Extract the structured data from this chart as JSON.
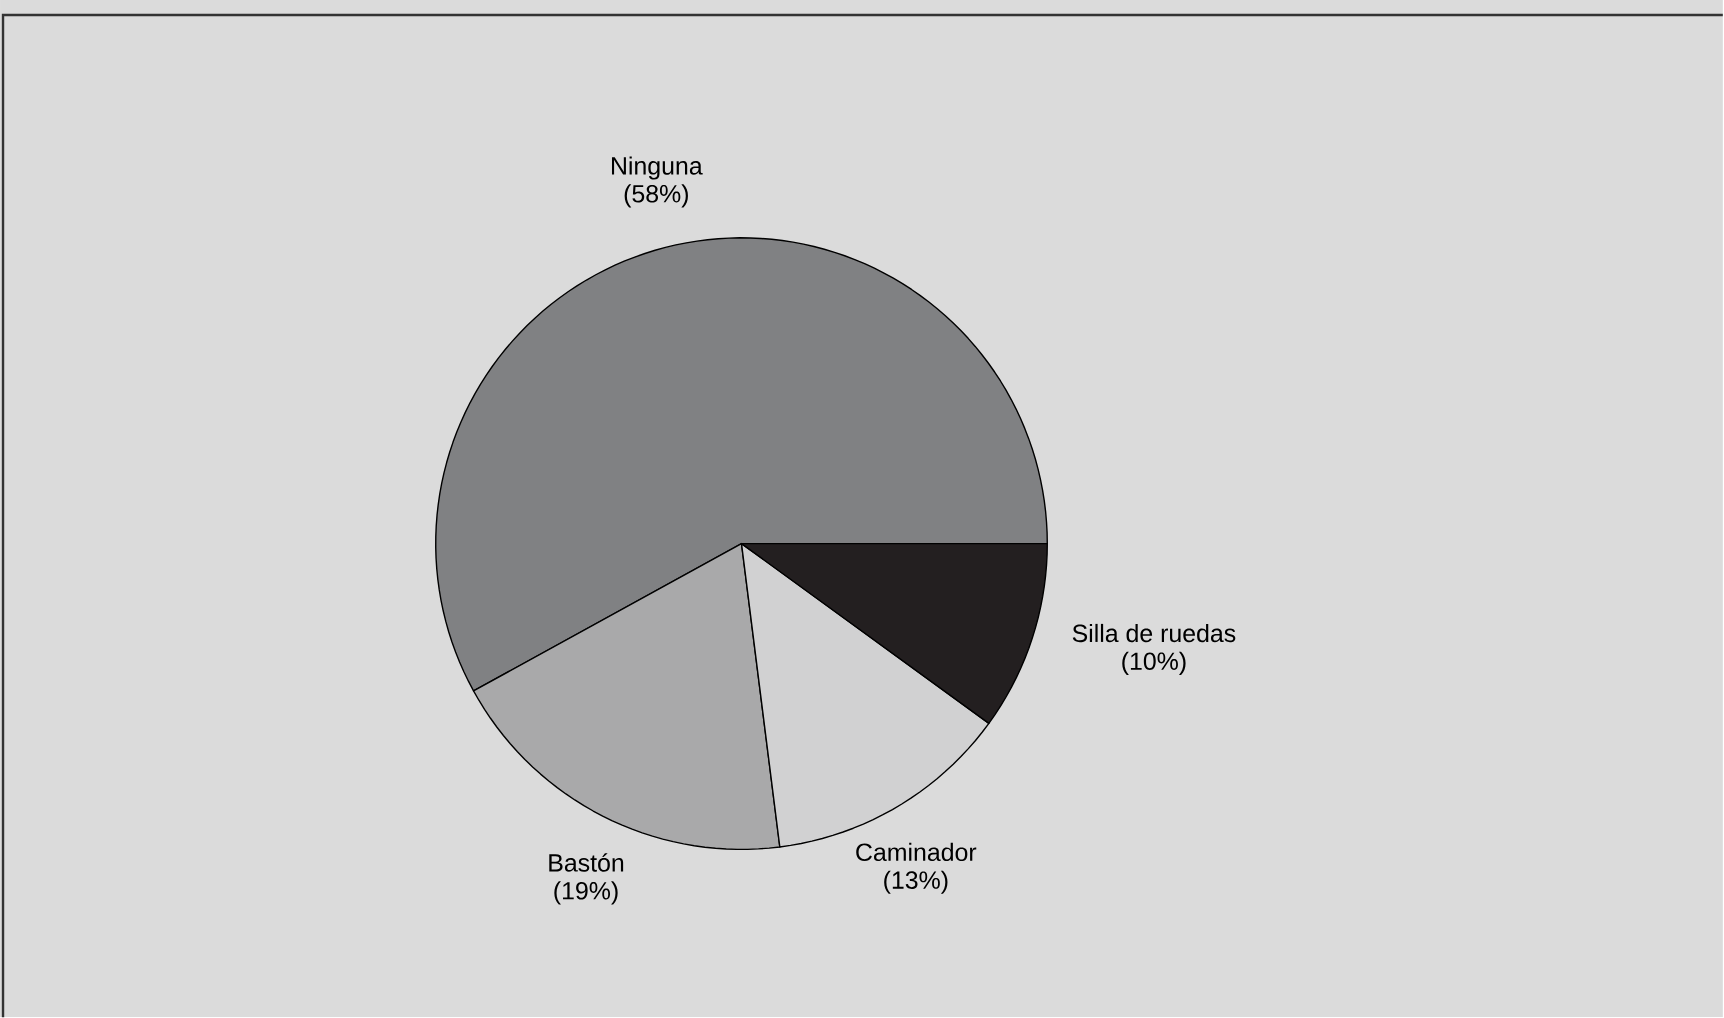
{
  "chart_data": {
    "type": "pie",
    "categories": [
      "Ninguna",
      "Bastón",
      "Caminador",
      "Silla de ruedas"
    ],
    "values": [
      58,
      19,
      13,
      10
    ],
    "value_labels": [
      "(58%)",
      "(19%)",
      "(13%)",
      "(10%)"
    ],
    "colors": [
      "#808183",
      "#a9a9aa",
      "#d1d1d2",
      "#231f20"
    ]
  }
}
